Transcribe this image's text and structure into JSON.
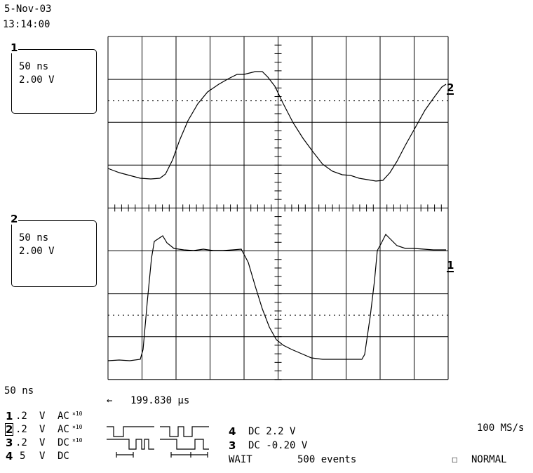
{
  "header": {
    "date": "5-Nov-03",
    "time": "13:14:00"
  },
  "trace_boxes": [
    {
      "number": "1",
      "timebase": "50 ns",
      "volts": "2.00 V"
    },
    {
      "number": "2",
      "timebase": "50 ns",
      "volts": "2.00 V"
    }
  ],
  "screen_markers": {
    "upper_trace": "2",
    "lower_trace": "1"
  },
  "status": {
    "timebase": "50 ns",
    "delay_arrow": "←",
    "delay": "199.830 µs",
    "channels": [
      {
        "num": "1",
        "scale": ".2",
        "unit": "V",
        "coupling": "AC",
        "probe": "×10"
      },
      {
        "num": "2",
        "scale": ".2",
        "unit": "V",
        "coupling": "AC",
        "probe": "×10"
      },
      {
        "num": "3",
        "scale": ".2",
        "unit": "V",
        "coupling": "DC",
        "probe": "×10"
      },
      {
        "num": "4",
        "scale": "5",
        "unit": "V",
        "coupling": "DC",
        "probe": ""
      }
    ],
    "trigger_lines": [
      {
        "num": "4",
        "text": "DC 2.2 V"
      },
      {
        "num": "3",
        "text": "DC -0.20 V"
      }
    ],
    "trigger_state": "WAIT",
    "events": "500 events",
    "sample_rate": "100 MS/s",
    "acq_mode_checkbox": "☐",
    "acq_mode": "NORMAL"
  }
}
